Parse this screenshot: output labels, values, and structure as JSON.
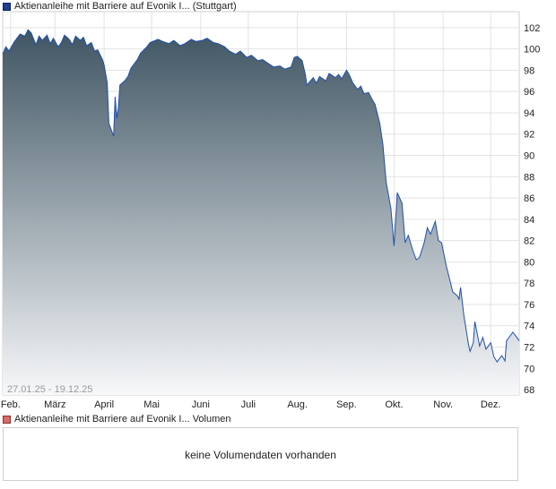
{
  "chart_data": {
    "type": "area",
    "legend": "Aktienanleihe mit Barriere auf Evonik I... (Stuttgart)",
    "date_range": "27.01.25 - 19.12.25",
    "x_ticks": [
      "Feb.",
      "März",
      "April",
      "Mai",
      "Juni",
      "Juli",
      "Aug.",
      "Sep.",
      "Okt.",
      "Nov.",
      "Dez."
    ],
    "y_ticks": [
      68,
      70,
      72,
      74,
      76,
      78,
      80,
      82,
      84,
      86,
      88,
      90,
      92,
      94,
      96,
      98,
      100,
      102
    ],
    "ylim": [
      67.5,
      103.5
    ],
    "xlim": [
      "2025-01-27",
      "2025-12-19"
    ],
    "grid": true,
    "series": [
      {
        "values": [
          [
            "2025-01-27",
            99.5
          ],
          [
            "2025-01-29",
            100.2
          ],
          [
            "2025-01-31",
            99.8
          ],
          [
            "2025-02-03",
            100.6
          ],
          [
            "2025-02-05",
            101.0
          ],
          [
            "2025-02-07",
            101.4
          ],
          [
            "2025-02-10",
            101.2
          ],
          [
            "2025-02-12",
            101.8
          ],
          [
            "2025-02-14",
            101.5
          ],
          [
            "2025-02-17",
            100.4
          ],
          [
            "2025-02-19",
            101.2
          ],
          [
            "2025-02-21",
            100.8
          ],
          [
            "2025-02-24",
            101.3
          ],
          [
            "2025-02-26",
            100.5
          ],
          [
            "2025-02-28",
            101.0
          ],
          [
            "2025-03-03",
            100.2
          ],
          [
            "2025-03-05",
            100.6
          ],
          [
            "2025-03-07",
            101.3
          ],
          [
            "2025-03-10",
            100.9
          ],
          [
            "2025-03-12",
            100.4
          ],
          [
            "2025-03-14",
            101.2
          ],
          [
            "2025-03-17",
            100.8
          ],
          [
            "2025-03-19",
            101.1
          ],
          [
            "2025-03-21",
            100.3
          ],
          [
            "2025-03-24",
            100.6
          ],
          [
            "2025-03-26",
            99.8
          ],
          [
            "2025-03-28",
            99.9
          ],
          [
            "2025-03-31",
            99.0
          ],
          [
            "2025-04-01",
            98.5
          ],
          [
            "2025-04-03",
            96.8
          ],
          [
            "2025-04-04",
            93.0
          ],
          [
            "2025-04-07",
            91.8
          ],
          [
            "2025-04-08",
            95.5
          ],
          [
            "2025-04-09",
            93.5
          ],
          [
            "2025-04-10",
            94.5
          ],
          [
            "2025-04-11",
            96.6
          ],
          [
            "2025-04-14",
            97.0
          ],
          [
            "2025-04-16",
            97.4
          ],
          [
            "2025-04-18",
            98.2
          ],
          [
            "2025-04-22",
            99.0
          ],
          [
            "2025-04-24",
            99.6
          ],
          [
            "2025-04-28",
            100.2
          ],
          [
            "2025-04-30",
            100.6
          ],
          [
            "2025-05-05",
            100.9
          ],
          [
            "2025-05-08",
            100.7
          ],
          [
            "2025-05-12",
            100.5
          ],
          [
            "2025-05-15",
            100.8
          ],
          [
            "2025-05-19",
            100.3
          ],
          [
            "2025-05-22",
            100.5
          ],
          [
            "2025-05-26",
            100.9
          ],
          [
            "2025-05-29",
            100.7
          ],
          [
            "2025-06-02",
            100.8
          ],
          [
            "2025-06-05",
            101.0
          ],
          [
            "2025-06-09",
            100.6
          ],
          [
            "2025-06-12",
            100.5
          ],
          [
            "2025-06-16",
            100.2
          ],
          [
            "2025-06-19",
            99.8
          ],
          [
            "2025-06-23",
            99.5
          ],
          [
            "2025-06-26",
            99.8
          ],
          [
            "2025-06-30",
            99.2
          ],
          [
            "2025-07-03",
            99.4
          ],
          [
            "2025-07-07",
            98.9
          ],
          [
            "2025-07-10",
            99.0
          ],
          [
            "2025-07-14",
            98.6
          ],
          [
            "2025-07-17",
            98.3
          ],
          [
            "2025-07-21",
            98.4
          ],
          [
            "2025-07-24",
            98.1
          ],
          [
            "2025-07-28",
            98.3
          ],
          [
            "2025-07-30",
            99.2
          ],
          [
            "2025-08-01",
            99.3
          ],
          [
            "2025-08-04",
            98.9
          ],
          [
            "2025-08-06",
            97.6
          ],
          [
            "2025-08-07",
            96.6
          ],
          [
            "2025-08-11",
            97.3
          ],
          [
            "2025-08-13",
            96.8
          ],
          [
            "2025-08-15",
            97.4
          ],
          [
            "2025-08-19",
            97.0
          ],
          [
            "2025-08-21",
            97.7
          ],
          [
            "2025-08-25",
            97.3
          ],
          [
            "2025-08-27",
            97.6
          ],
          [
            "2025-08-29",
            97.2
          ],
          [
            "2025-09-01",
            98.0
          ],
          [
            "2025-09-03",
            97.5
          ],
          [
            "2025-09-05",
            96.8
          ],
          [
            "2025-09-08",
            96.2
          ],
          [
            "2025-09-10",
            96.5
          ],
          [
            "2025-09-12",
            95.8
          ],
          [
            "2025-09-15",
            95.9
          ],
          [
            "2025-09-17",
            95.3
          ],
          [
            "2025-09-19",
            94.8
          ],
          [
            "2025-09-22",
            93.0
          ],
          [
            "2025-09-24",
            91.0
          ],
          [
            "2025-09-26",
            87.5
          ],
          [
            "2025-09-29",
            85.0
          ],
          [
            "2025-10-01",
            81.5
          ],
          [
            "2025-10-02",
            84.0
          ],
          [
            "2025-10-03",
            86.5
          ],
          [
            "2025-10-06",
            85.5
          ],
          [
            "2025-10-08",
            81.8
          ],
          [
            "2025-10-10",
            82.5
          ],
          [
            "2025-10-13",
            81.0
          ],
          [
            "2025-10-15",
            80.2
          ],
          [
            "2025-10-17",
            80.4
          ],
          [
            "2025-10-20",
            81.8
          ],
          [
            "2025-10-22",
            83.2
          ],
          [
            "2025-10-24",
            82.6
          ],
          [
            "2025-10-27",
            83.8
          ],
          [
            "2025-10-29",
            82.0
          ],
          [
            "2025-10-31",
            81.8
          ],
          [
            "2025-11-03",
            79.6
          ],
          [
            "2025-11-05",
            78.4
          ],
          [
            "2025-11-07",
            77.2
          ],
          [
            "2025-11-10",
            76.8
          ],
          [
            "2025-11-11",
            76.5
          ],
          [
            "2025-11-12",
            77.6
          ],
          [
            "2025-11-14",
            75.0
          ],
          [
            "2025-11-17",
            72.2
          ],
          [
            "2025-11-18",
            71.6
          ],
          [
            "2025-11-20",
            72.4
          ],
          [
            "2025-11-21",
            74.4
          ],
          [
            "2025-11-24",
            72.1
          ],
          [
            "2025-11-26",
            72.9
          ],
          [
            "2025-11-28",
            71.8
          ],
          [
            "2025-12-01",
            72.4
          ],
          [
            "2025-12-03",
            71.1
          ],
          [
            "2025-12-05",
            70.6
          ],
          [
            "2025-12-08",
            71.2
          ],
          [
            "2025-12-10",
            70.7
          ],
          [
            "2025-12-11",
            72.6
          ],
          [
            "2025-12-12",
            72.8
          ],
          [
            "2025-12-15",
            73.4
          ],
          [
            "2025-12-17",
            73.0
          ],
          [
            "2025-12-19",
            72.6
          ]
        ]
      }
    ]
  },
  "volume": {
    "legend": "Aktienanleihe mit Barriere auf Evonik I... Volumen",
    "message": "keine Volumendaten vorhanden"
  },
  "colors": {
    "line": "#1f4fb0",
    "fill_top": "#3f5563",
    "fill_bottom": "#f7f8fa",
    "grid": "#e3e3e3",
    "frame": "#cfcfcf",
    "price_swatch": "#1f3f8f",
    "volume_swatch": "#d96a6a"
  }
}
